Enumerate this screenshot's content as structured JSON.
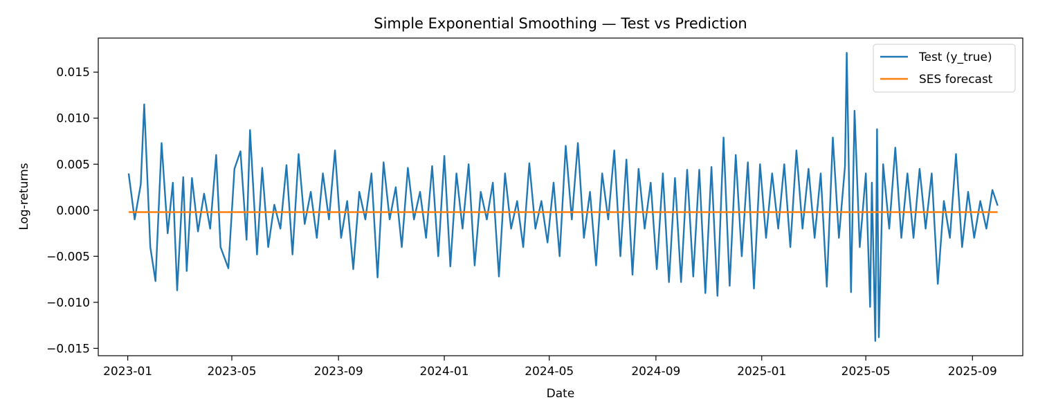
{
  "chart_data": {
    "type": "line",
    "title": "Simple Exponential Smoothing — Test vs Prediction",
    "xlabel": "Date",
    "ylabel": "Log-returns",
    "xlim": [
      "2022-11-28",
      "2025-10-29"
    ],
    "ylim": [
      -0.0158,
      0.0187
    ],
    "x_ticks": [
      "2023-01",
      "2023-05",
      "2023-09",
      "2024-01",
      "2024-05",
      "2024-09",
      "2025-01",
      "2025-05",
      "2025-09"
    ],
    "y_ticks": [
      0.015,
      0.01,
      0.005,
      0.0,
      -0.005,
      -0.01,
      -0.015
    ],
    "y_tick_labels": [
      "0.015",
      "0.010",
      "0.005",
      "0.000",
      "−0.005",
      "−0.010",
      "−0.015"
    ],
    "legend_position": "top-right",
    "series": [
      {
        "name": "Test (y_true)",
        "color": "#1f77b4",
        "points": [
          [
            "2023-01-02",
            0.004
          ],
          [
            "2023-01-09",
            -0.001
          ],
          [
            "2023-01-16",
            0.0028
          ],
          [
            "2023-01-20",
            0.0115
          ],
          [
            "2023-01-27",
            -0.004
          ],
          [
            "2023-02-02",
            -0.0077
          ],
          [
            "2023-02-09",
            0.0073
          ],
          [
            "2023-02-16",
            -0.0025
          ],
          [
            "2023-02-22",
            0.003
          ],
          [
            "2023-02-27",
            -0.0087
          ],
          [
            "2023-03-06",
            0.0036
          ],
          [
            "2023-03-10",
            -0.0066
          ],
          [
            "2023-03-16",
            0.0035
          ],
          [
            "2023-03-23",
            -0.0023
          ],
          [
            "2023-03-30",
            0.0018
          ],
          [
            "2023-04-06",
            -0.002
          ],
          [
            "2023-04-13",
            0.006
          ],
          [
            "2023-04-18",
            -0.004
          ],
          [
            "2023-04-27",
            -0.0063
          ],
          [
            "2023-05-04",
            0.0045
          ],
          [
            "2023-05-11",
            0.0064
          ],
          [
            "2023-05-18",
            -0.0032
          ],
          [
            "2023-05-22",
            0.0087
          ],
          [
            "2023-05-30",
            -0.0048
          ],
          [
            "2023-06-05",
            0.0046
          ],
          [
            "2023-06-12",
            -0.004
          ],
          [
            "2023-06-19",
            0.0006
          ],
          [
            "2023-06-26",
            -0.002
          ],
          [
            "2023-07-03",
            0.0049
          ],
          [
            "2023-07-10",
            -0.0048
          ],
          [
            "2023-07-17",
            0.0061
          ],
          [
            "2023-07-24",
            -0.0015
          ],
          [
            "2023-07-31",
            0.002
          ],
          [
            "2023-08-07",
            -0.003
          ],
          [
            "2023-08-14",
            0.004
          ],
          [
            "2023-08-21",
            -0.001
          ],
          [
            "2023-08-28",
            0.0065
          ],
          [
            "2023-09-04",
            -0.003
          ],
          [
            "2023-09-11",
            0.001
          ],
          [
            "2023-09-18",
            -0.0064
          ],
          [
            "2023-09-25",
            0.002
          ],
          [
            "2023-10-02",
            -0.001
          ],
          [
            "2023-10-09",
            0.004
          ],
          [
            "2023-10-16",
            -0.0073
          ],
          [
            "2023-10-23",
            0.0052
          ],
          [
            "2023-10-30",
            -0.001
          ],
          [
            "2023-11-06",
            0.0025
          ],
          [
            "2023-11-13",
            -0.004
          ],
          [
            "2023-11-20",
            0.0046
          ],
          [
            "2023-11-27",
            -0.001
          ],
          [
            "2023-12-04",
            0.002
          ],
          [
            "2023-12-11",
            -0.003
          ],
          [
            "2023-12-18",
            0.0048
          ],
          [
            "2023-12-25",
            -0.005
          ],
          [
            "2024-01-01",
            0.0059
          ],
          [
            "2024-01-08",
            -0.0061
          ],
          [
            "2024-01-15",
            0.004
          ],
          [
            "2024-01-22",
            -0.002
          ],
          [
            "2024-01-29",
            0.005
          ],
          [
            "2024-02-05",
            -0.006
          ],
          [
            "2024-02-12",
            0.002
          ],
          [
            "2024-02-19",
            -0.001
          ],
          [
            "2024-02-26",
            0.003
          ],
          [
            "2024-03-04",
            -0.0072
          ],
          [
            "2024-03-11",
            0.004
          ],
          [
            "2024-03-18",
            -0.002
          ],
          [
            "2024-03-25",
            0.001
          ],
          [
            "2024-04-01",
            -0.004
          ],
          [
            "2024-04-08",
            0.0051
          ],
          [
            "2024-04-15",
            -0.002
          ],
          [
            "2024-04-22",
            0.001
          ],
          [
            "2024-04-29",
            -0.0035
          ],
          [
            "2024-05-06",
            0.003
          ],
          [
            "2024-05-13",
            -0.005
          ],
          [
            "2024-05-20",
            0.007
          ],
          [
            "2024-05-27",
            -0.001
          ],
          [
            "2024-06-03",
            0.0073
          ],
          [
            "2024-06-10",
            -0.003
          ],
          [
            "2024-06-17",
            0.002
          ],
          [
            "2024-06-24",
            -0.006
          ],
          [
            "2024-07-01",
            0.004
          ],
          [
            "2024-07-08",
            -0.001
          ],
          [
            "2024-07-15",
            0.0065
          ],
          [
            "2024-07-22",
            -0.005
          ],
          [
            "2024-07-29",
            0.0055
          ],
          [
            "2024-08-05",
            -0.007
          ],
          [
            "2024-08-12",
            0.0045
          ],
          [
            "2024-08-19",
            -0.002
          ],
          [
            "2024-08-26",
            0.003
          ],
          [
            "2024-09-02",
            -0.0064
          ],
          [
            "2024-09-09",
            0.004
          ],
          [
            "2024-09-16",
            -0.0078
          ],
          [
            "2024-09-23",
            0.0035
          ],
          [
            "2024-09-30",
            -0.0078
          ],
          [
            "2024-10-07",
            0.0044
          ],
          [
            "2024-10-14",
            -0.0072
          ],
          [
            "2024-10-21",
            0.0044
          ],
          [
            "2024-10-28",
            -0.009
          ],
          [
            "2024-11-04",
            0.0047
          ],
          [
            "2024-11-11",
            -0.0093
          ],
          [
            "2024-11-18",
            0.0079
          ],
          [
            "2024-11-25",
            -0.0082
          ],
          [
            "2024-12-02",
            0.006
          ],
          [
            "2024-12-09",
            -0.005
          ],
          [
            "2024-12-16",
            0.0052
          ],
          [
            "2024-12-23",
            -0.0085
          ],
          [
            "2024-12-30",
            0.005
          ],
          [
            "2025-01-06",
            -0.003
          ],
          [
            "2025-01-13",
            0.004
          ],
          [
            "2025-01-20",
            -0.002
          ],
          [
            "2025-01-27",
            0.005
          ],
          [
            "2025-02-03",
            -0.004
          ],
          [
            "2025-02-10",
            0.0065
          ],
          [
            "2025-02-17",
            -0.002
          ],
          [
            "2025-02-24",
            0.0045
          ],
          [
            "2025-03-03",
            -0.003
          ],
          [
            "2025-03-10",
            0.004
          ],
          [
            "2025-03-17",
            -0.0083
          ],
          [
            "2025-03-24",
            0.0079
          ],
          [
            "2025-03-31",
            -0.003
          ],
          [
            "2025-04-07",
            0.0048
          ],
          [
            "2025-04-09",
            0.0171
          ],
          [
            "2025-04-14",
            -0.0089
          ],
          [
            "2025-04-18",
            0.0108
          ],
          [
            "2025-04-24",
            -0.004
          ],
          [
            "2025-05-01",
            0.004
          ],
          [
            "2025-05-06",
            -0.0105
          ],
          [
            "2025-05-08",
            0.003
          ],
          [
            "2025-05-12",
            -0.0142
          ],
          [
            "2025-05-14",
            0.0088
          ],
          [
            "2025-05-16",
            -0.0138
          ],
          [
            "2025-05-21",
            0.005
          ],
          [
            "2025-05-28",
            -0.002
          ],
          [
            "2025-06-04",
            0.0068
          ],
          [
            "2025-06-11",
            -0.003
          ],
          [
            "2025-06-18",
            0.004
          ],
          [
            "2025-06-25",
            -0.003
          ],
          [
            "2025-07-02",
            0.0045
          ],
          [
            "2025-07-09",
            -0.002
          ],
          [
            "2025-07-16",
            0.004
          ],
          [
            "2025-07-23",
            -0.008
          ],
          [
            "2025-07-30",
            0.001
          ],
          [
            "2025-08-06",
            -0.003
          ],
          [
            "2025-08-13",
            0.0061
          ],
          [
            "2025-08-20",
            -0.004
          ],
          [
            "2025-08-27",
            0.002
          ],
          [
            "2025-09-03",
            -0.003
          ],
          [
            "2025-09-10",
            0.001
          ],
          [
            "2025-09-17",
            -0.002
          ],
          [
            "2025-09-24",
            0.0022
          ],
          [
            "2025-09-30",
            0.0005
          ]
        ]
      },
      {
        "name": "SES forecast",
        "color": "#ff7f0e",
        "points": [
          [
            "2023-01-02",
            -0.0002
          ],
          [
            "2025-09-30",
            -0.0002
          ]
        ]
      }
    ]
  }
}
